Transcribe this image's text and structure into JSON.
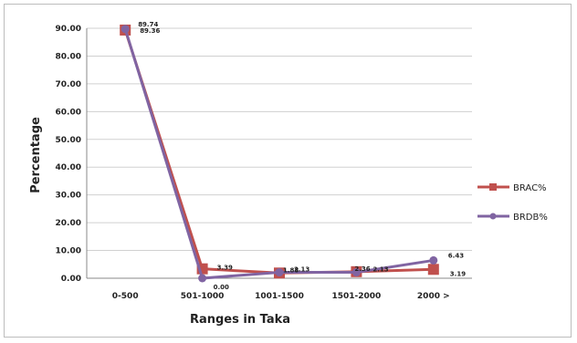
{
  "chart_data": {
    "type": "line",
    "title": "",
    "xlabel": "Ranges in Taka",
    "ylabel": "Percentage",
    "categories": [
      "0-500",
      "501-1000",
      "1001-1500",
      "1501-2000",
      "2000 >"
    ],
    "ylim": [
      0,
      90
    ],
    "yticks": [
      "0.00",
      "10.00",
      "20.00",
      "30.00",
      "40.00",
      "50.00",
      "60.00",
      "70.00",
      "80.00",
      "90.00"
    ],
    "grid": true,
    "legend": "right",
    "series": [
      {
        "name": "BRAC%",
        "color": "#c0504d",
        "marker": "square",
        "values": [
          89.36,
          3.39,
          1.88,
          2.36,
          3.19
        ],
        "labels": [
          "89.36",
          "3.39",
          "1.88",
          "2.36",
          "3.19"
        ]
      },
      {
        "name": "BRDB%",
        "color": "#8064a2",
        "marker": "diamond",
        "values": [
          89.74,
          0.0,
          2.13,
          2.13,
          6.43
        ],
        "labels": [
          "89.74",
          "0.00",
          "2.13",
          "2.13",
          "6.43"
        ]
      }
    ]
  }
}
